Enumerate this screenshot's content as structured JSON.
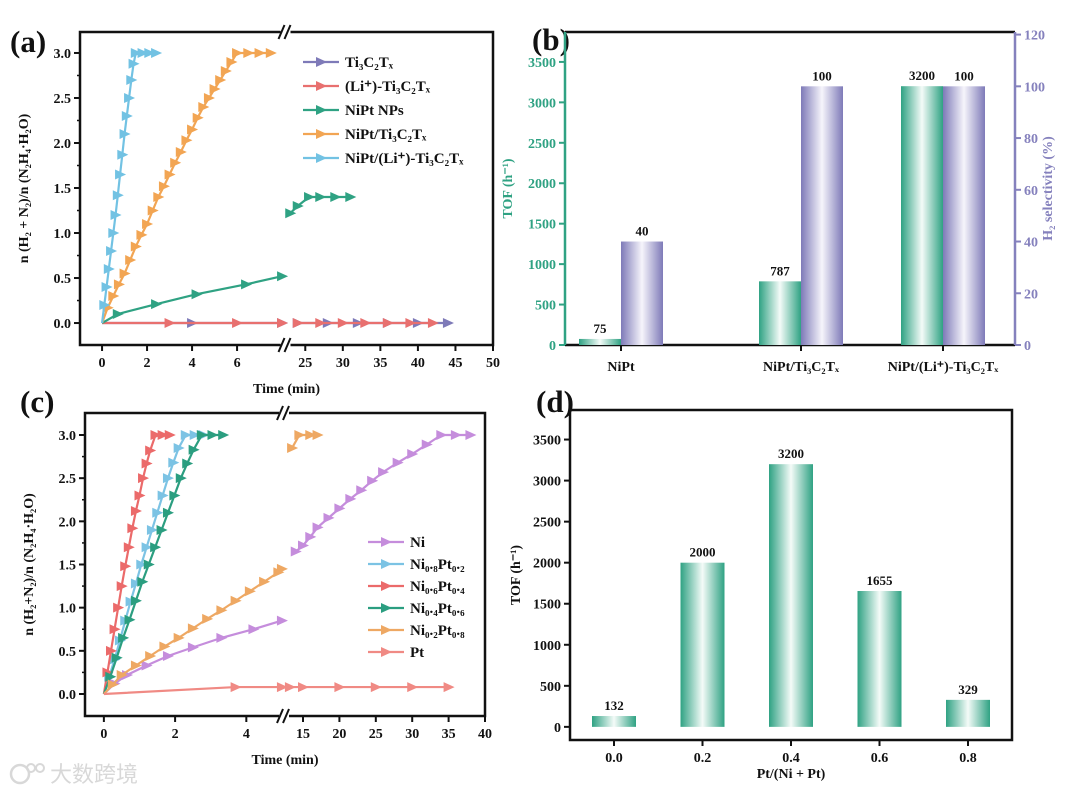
{
  "watermark": "大数跨境",
  "chart_data": [
    {
      "panel": "(a)",
      "type": "line",
      "xlabel": "Time (min)",
      "ylabel": "n (H₂ + N₂)/n (N₂H₄·H₂O)",
      "xbreak": [
        8,
        22.5
      ],
      "xticks_left": [
        "0",
        "2",
        "4",
        "6"
      ],
      "xticks_right": [
        "25",
        "30",
        "35",
        "40",
        "45",
        "50"
      ],
      "yticks": [
        "0.0",
        "0.5",
        "1.0",
        "1.5",
        "2.0",
        "2.5",
        "3.0"
      ],
      "ylim": [
        -0.25,
        3.25
      ],
      "legend_position": "top-right",
      "series": [
        {
          "name": "Ti₃C₂Tₓ",
          "color": "#7e7ab8",
          "points": [
            [
              0,
              0
            ],
            [
              4,
              0
            ],
            [
              8,
              0
            ],
            [
              24,
              0
            ],
            [
              28,
              0
            ],
            [
              32,
              0
            ],
            [
              36,
              0
            ],
            [
              40,
              0
            ],
            [
              44,
              0
            ]
          ]
        },
        {
          "name": "(Li⁺)-Ti₃C₂Tₓ",
          "color": "#e8706f",
          "points": [
            [
              0,
              0
            ],
            [
              3,
              0
            ],
            [
              6,
              0
            ],
            [
              8,
              0
            ],
            [
              24,
              0
            ],
            [
              27,
              0
            ],
            [
              30,
              0
            ],
            [
              33,
              0
            ],
            [
              36,
              0
            ],
            [
              39,
              0
            ],
            [
              42,
              0
            ]
          ]
        },
        {
          "name": "NiPt NPs",
          "color": "#2fa283",
          "points": [
            [
              0,
              0
            ],
            [
              0.7,
              0.1
            ],
            [
              2.4,
              0.21
            ],
            [
              4.2,
              0.32
            ],
            [
              6.4,
              0.43
            ],
            [
              8,
              0.52
            ],
            [
              23,
              1.22
            ],
            [
              24,
              1.3
            ],
            [
              25.5,
              1.4
            ],
            [
              27,
              1.4
            ],
            [
              29,
              1.4
            ],
            [
              31,
              1.4
            ]
          ]
        },
        {
          "name": "NiPt/Ti₃C₂Tₓ",
          "color": "#f2a553",
          "points": [
            [
              0,
              0
            ],
            [
              0.25,
              0.17
            ],
            [
              0.5,
              0.3
            ],
            [
              0.75,
              0.43
            ],
            [
              1,
              0.55
            ],
            [
              1.25,
              0.7
            ],
            [
              1.5,
              0.85
            ],
            [
              1.75,
              0.98
            ],
            [
              2,
              1.1
            ],
            [
              2.25,
              1.25
            ],
            [
              2.5,
              1.4
            ],
            [
              2.75,
              1.52
            ],
            [
              3,
              1.65
            ],
            [
              3.25,
              1.78
            ],
            [
              3.5,
              1.9
            ],
            [
              3.75,
              2.03
            ],
            [
              4,
              2.15
            ],
            [
              4.25,
              2.28
            ],
            [
              4.5,
              2.4
            ],
            [
              4.75,
              2.5
            ],
            [
              5,
              2.6
            ],
            [
              5.25,
              2.7
            ],
            [
              5.5,
              2.8
            ],
            [
              5.75,
              2.9
            ],
            [
              6,
              3.0
            ],
            [
              6.5,
              3.0
            ],
            [
              7,
              3.0
            ],
            [
              7.5,
              3.0
            ]
          ]
        },
        {
          "name": "NiPt/(Li⁺)-Ti₃C₂Tₓ",
          "color": "#72c2e3",
          "points": [
            [
              0,
              0
            ],
            [
              0.1,
              0.2
            ],
            [
              0.2,
              0.4
            ],
            [
              0.3,
              0.6
            ],
            [
              0.4,
              0.8
            ],
            [
              0.5,
              1.0
            ],
            [
              0.6,
              1.2
            ],
            [
              0.7,
              1.42
            ],
            [
              0.8,
              1.65
            ],
            [
              0.9,
              1.87
            ],
            [
              1.0,
              2.1
            ],
            [
              1.1,
              2.3
            ],
            [
              1.2,
              2.5
            ],
            [
              1.3,
              2.7
            ],
            [
              1.4,
              2.88
            ],
            [
              1.5,
              3.0
            ],
            [
              1.8,
              3.0
            ],
            [
              2.1,
              3.0
            ],
            [
              2.4,
              3.0
            ]
          ]
        }
      ]
    },
    {
      "panel": "(b)",
      "type": "bar",
      "categories": [
        "NiPt",
        "NiPt/Ti₃C₂Tₓ",
        "NiPt/(Li⁺)-Ti₃C₂Tₓ"
      ],
      "series": [
        {
          "name": "TOF",
          "axis": "left",
          "color": "#2fa283",
          "values": [
            75,
            787,
            3200
          ],
          "labels": [
            "75",
            "787",
            "3200"
          ]
        },
        {
          "name": "H₂ selectivity",
          "axis": "right",
          "color": "#8581bd",
          "values": [
            40,
            100,
            100
          ],
          "labels": [
            "40",
            "100",
            "100"
          ]
        }
      ],
      "ylabel": "TOF (h⁻¹)",
      "ylabel_right": "H₂ selectivity (%)",
      "yticks": [
        "0",
        "500",
        "1000",
        "1500",
        "2000",
        "2500",
        "3000",
        "3500"
      ],
      "yticks_right": [
        "0",
        "20",
        "40",
        "60",
        "80",
        "100",
        "120"
      ],
      "ylim": [
        0,
        3870
      ],
      "ylim_right": [
        0,
        121
      ]
    },
    {
      "panel": "(c)",
      "type": "line",
      "xlabel": "Time (min)",
      "ylabel": "n (H₂+N₂)/n (N₂H₄·H₂O)",
      "xbreak": [
        5,
        13
      ],
      "xticks_left": [
        "0",
        "2",
        "4"
      ],
      "xticks_right": [
        "15",
        "20",
        "25",
        "30",
        "35",
        "40"
      ],
      "yticks": [
        "0.0",
        "0.5",
        "1.0",
        "1.5",
        "2.0",
        "2.5",
        "3.0"
      ],
      "ylim": [
        -0.25,
        3.25
      ],
      "legend_position": "right",
      "series": [
        {
          "name": "Ni",
          "color": "#c58ddc",
          "points": [
            [
              0,
              0
            ],
            [
              0.3,
              0.12
            ],
            [
              0.65,
              0.22
            ],
            [
              1.2,
              0.33
            ],
            [
              1.8,
              0.44
            ],
            [
              2.5,
              0.54
            ],
            [
              3.3,
              0.65
            ],
            [
              4.2,
              0.75
            ],
            [
              5,
              0.85
            ],
            [
              14,
              1.65
            ],
            [
              15,
              1.72
            ],
            [
              16,
              1.82
            ],
            [
              17,
              1.93
            ],
            [
              18.5,
              2.04
            ],
            [
              20,
              2.15
            ],
            [
              21.5,
              2.26
            ],
            [
              23,
              2.36
            ],
            [
              24.5,
              2.47
            ],
            [
              26,
              2.57
            ],
            [
              28,
              2.68
            ],
            [
              30,
              2.78
            ],
            [
              32,
              2.89
            ],
            [
              34,
              3.0
            ],
            [
              36,
              3.0
            ],
            [
              38,
              3.0
            ]
          ]
        },
        {
          "name": "Ni₀.₈Pt₀.₂",
          "color": "#7cc3e4",
          "points": [
            [
              0,
              0
            ],
            [
              0.15,
              0.2
            ],
            [
              0.3,
              0.4
            ],
            [
              0.45,
              0.62
            ],
            [
              0.6,
              0.85
            ],
            [
              0.75,
              1.07
            ],
            [
              0.9,
              1.28
            ],
            [
              1.05,
              1.5
            ],
            [
              1.2,
              1.7
            ],
            [
              1.35,
              1.9
            ],
            [
              1.5,
              2.1
            ],
            [
              1.65,
              2.3
            ],
            [
              1.8,
              2.5
            ],
            [
              1.95,
              2.68
            ],
            [
              2.1,
              2.85
            ],
            [
              2.3,
              3.0
            ],
            [
              2.55,
              3.0
            ],
            [
              2.8,
              3.0
            ]
          ]
        },
        {
          "name": "Ni₀.₆Pt₀.₄",
          "color": "#eb6a6a",
          "points": [
            [
              0,
              0
            ],
            [
              0.1,
              0.25
            ],
            [
              0.2,
              0.5
            ],
            [
              0.3,
              0.75
            ],
            [
              0.4,
              1.0
            ],
            [
              0.5,
              1.25
            ],
            [
              0.6,
              1.48
            ],
            [
              0.7,
              1.7
            ],
            [
              0.8,
              1.92
            ],
            [
              0.9,
              2.12
            ],
            [
              1.0,
              2.3
            ],
            [
              1.1,
              2.5
            ],
            [
              1.2,
              2.67
            ],
            [
              1.3,
              2.82
            ],
            [
              1.45,
              3.0
            ],
            [
              1.65,
              3.0
            ],
            [
              1.85,
              3.0
            ]
          ]
        },
        {
          "name": "Ni₀.₄Pt₀.₆",
          "color": "#2b9e80",
          "points": [
            [
              0,
              0
            ],
            [
              0.18,
              0.2
            ],
            [
              0.36,
              0.42
            ],
            [
              0.54,
              0.65
            ],
            [
              0.72,
              0.86
            ],
            [
              0.9,
              1.08
            ],
            [
              1.08,
              1.3
            ],
            [
              1.26,
              1.5
            ],
            [
              1.44,
              1.7
            ],
            [
              1.62,
              1.9
            ],
            [
              1.8,
              2.1
            ],
            [
              1.98,
              2.3
            ],
            [
              2.16,
              2.5
            ],
            [
              2.34,
              2.67
            ],
            [
              2.52,
              2.83
            ],
            [
              2.75,
              3.0
            ],
            [
              3.05,
              3.0
            ],
            [
              3.35,
              3.0
            ]
          ]
        },
        {
          "name": "Ni₀.₂Pt₀.₈",
          "color": "#eea863",
          "points": [
            [
              0,
              0
            ],
            [
              0.25,
              0.11
            ],
            [
              0.5,
              0.22
            ],
            [
              0.9,
              0.33
            ],
            [
              1.3,
              0.44
            ],
            [
              1.7,
              0.55
            ],
            [
              2.1,
              0.65
            ],
            [
              2.5,
              0.76
            ],
            [
              2.9,
              0.87
            ],
            [
              3.3,
              0.97
            ],
            [
              3.7,
              1.08
            ],
            [
              4.1,
              1.19
            ],
            [
              4.5,
              1.3
            ],
            [
              4.9,
              1.41
            ],
            [
              5,
              1.45
            ],
            [
              13.5,
              2.85
            ],
            [
              14.5,
              3.0
            ],
            [
              16,
              3.0
            ],
            [
              17,
              3.0
            ]
          ]
        },
        {
          "name": "Pt",
          "color": "#f08a84",
          "points": [
            [
              0,
              0
            ],
            [
              3.7,
              0.08
            ],
            [
              5,
              0.08
            ],
            [
              13.2,
              0.08
            ],
            [
              15,
              0.08
            ],
            [
              20,
              0.08
            ],
            [
              25,
              0.08
            ],
            [
              30,
              0.08
            ],
            [
              35,
              0.08
            ]
          ]
        }
      ]
    },
    {
      "panel": "(d)",
      "type": "bar",
      "xlabel": "Pt/(Ni + Pt)",
      "ylabel": "TOF (h⁻¹)",
      "categories": [
        "0.0",
        "0.2",
        "0.4",
        "0.6",
        "0.8"
      ],
      "values": [
        132,
        2000,
        3200,
        1655,
        329
      ],
      "labels": [
        "132",
        "2000",
        "3200",
        "1655",
        "329"
      ],
      "color": "#2fa283",
      "yticks": [
        "0",
        "500",
        "1000",
        "1500",
        "2000",
        "2500",
        "3000",
        "3500"
      ],
      "ylim": [
        -160,
        3860
      ]
    }
  ]
}
